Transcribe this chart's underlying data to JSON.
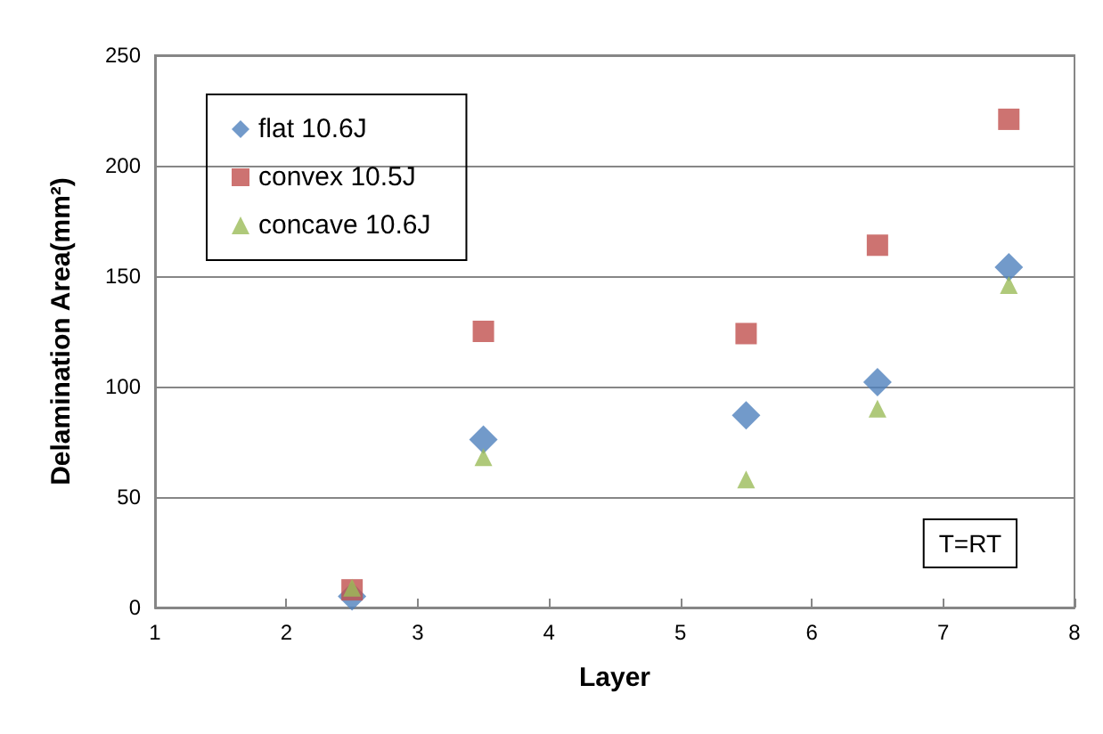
{
  "chart_data": {
    "type": "scatter",
    "xlabel": "Layer",
    "ylabel": "Delamination Area(mm²)",
    "x": [
      2.5,
      3.5,
      5.5,
      6.5,
      7.5
    ],
    "series": [
      {
        "name": "flat 10.6J",
        "color": "#4f81bd",
        "marker": "diamond",
        "values": [
          5,
          76,
          87,
          102,
          154
        ]
      },
      {
        "name": "convex 10.5J",
        "color": "#c0504d",
        "marker": "square",
        "values": [
          8,
          125,
          124,
          164,
          221
        ]
      },
      {
        "name": "concave 10.6J",
        "color": "#9bbb59",
        "marker": "triangle",
        "values": [
          9,
          68,
          58,
          90,
          146
        ]
      }
    ],
    "xlim": [
      1,
      8
    ],
    "xticks": [
      1,
      2,
      3,
      4,
      5,
      6,
      7,
      8
    ],
    "ylim": [
      0,
      250
    ],
    "yticks": [
      0,
      50,
      100,
      150,
      200,
      250
    ],
    "grid": "y",
    "legend": "top left",
    "annotations": [
      "T=RT"
    ]
  }
}
